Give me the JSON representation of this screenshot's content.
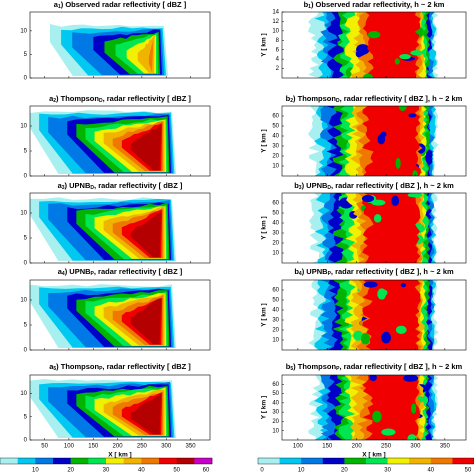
{
  "chart_data": {
    "type": "contour-panels",
    "left_x_label": "X [ km ]",
    "right_x_label": "X [ km ]",
    "right_y_label": "Y [ km ]",
    "left_xlim": [
      20,
      390
    ],
    "left_xticks": [
      50,
      100,
      150,
      200,
      250,
      300,
      350
    ],
    "right_xlim": [
      73,
      386
    ],
    "right_xticks": [
      100,
      150,
      200,
      250,
      300,
      350
    ],
    "left_ylim": [
      0,
      14
    ],
    "left_yticks": [
      0,
      5,
      10
    ],
    "panels": [
      {
        "col": "left",
        "id": "a",
        "sub": "1",
        "name": "Observed radar reflectivity",
        "name_sub": null,
        "rest": " [ dBZ ]"
      },
      {
        "col": "right",
        "id": "b",
        "sub": "1",
        "name": "Observed radar reflectivity",
        "name_sub": null,
        "rest": ", h ~ 2 km",
        "ylim": [
          0,
          14
        ],
        "yticks": [
          2,
          4,
          6,
          8,
          10,
          12,
          14
        ]
      },
      {
        "col": "left",
        "id": "a",
        "sub": "2",
        "name": "Thompson",
        "name_sub": "D",
        "rest": ", radar reflectivity [ dBZ ]"
      },
      {
        "col": "right",
        "id": "b",
        "sub": "2",
        "name": "Thompson",
        "name_sub": "D",
        "rest": ", radar reflectivity [ dBZ ], h ~ 2 km",
        "ylim": [
          0,
          70
        ],
        "yticks": [
          10,
          20,
          30,
          40,
          50,
          60
        ]
      },
      {
        "col": "left",
        "id": "a",
        "sub": "3",
        "name": "UPNB",
        "name_sub": "D",
        "rest": ", radar reflectivity [ dBZ ]"
      },
      {
        "col": "right",
        "id": "b",
        "sub": "3",
        "name": "UPNB",
        "name_sub": "D",
        "rest": ", radar reflectivity [ dBZ ], h ~ 2 km",
        "ylim": [
          0,
          70
        ],
        "yticks": [
          10,
          20,
          30,
          40,
          50,
          60
        ]
      },
      {
        "col": "left",
        "id": "a",
        "sub": "4",
        "name": "UPNB",
        "name_sub": "P",
        "rest": ", radar reflectivity [ dBZ ]"
      },
      {
        "col": "right",
        "id": "b",
        "sub": "4",
        "name": "UPNB",
        "name_sub": "P",
        "rest": ", radar reflectivity [ dBZ ], h ~ 2 km",
        "ylim": [
          0,
          70
        ],
        "yticks": [
          10,
          20,
          30,
          40,
          50,
          60
        ]
      },
      {
        "col": "left",
        "id": "a",
        "sub": "5",
        "name": "Thompson",
        "name_sub": "P",
        "rest": ", radar reflectivity [ dBZ ]"
      },
      {
        "col": "right",
        "id": "b",
        "sub": "5",
        "name": "Thompson",
        "name_sub": "P",
        "rest": ", radar reflectivity [ dBZ ], h ~ 2 km",
        "ylim": [
          0,
          70
        ],
        "yticks": [
          10,
          20,
          30,
          40,
          50,
          60
        ]
      }
    ],
    "colorbars": [
      {
        "col": "left",
        "lim": [
          0,
          60
        ],
        "ticks": [
          10,
          20,
          30,
          40,
          50,
          60
        ]
      },
      {
        "col": "right",
        "lim": [
          0,
          50
        ],
        "ticks": [
          0,
          10,
          20,
          30,
          40,
          50
        ]
      }
    ],
    "colors": [
      "#a8f0f0",
      "#00c8f0",
      "#0078e6",
      "#0000c8",
      "#00b400",
      "#00e650",
      "#f0f000",
      "#f0b400",
      "#f07800",
      "#f00000",
      "#b40000",
      "#c800c8",
      "#7800b4"
    ]
  }
}
